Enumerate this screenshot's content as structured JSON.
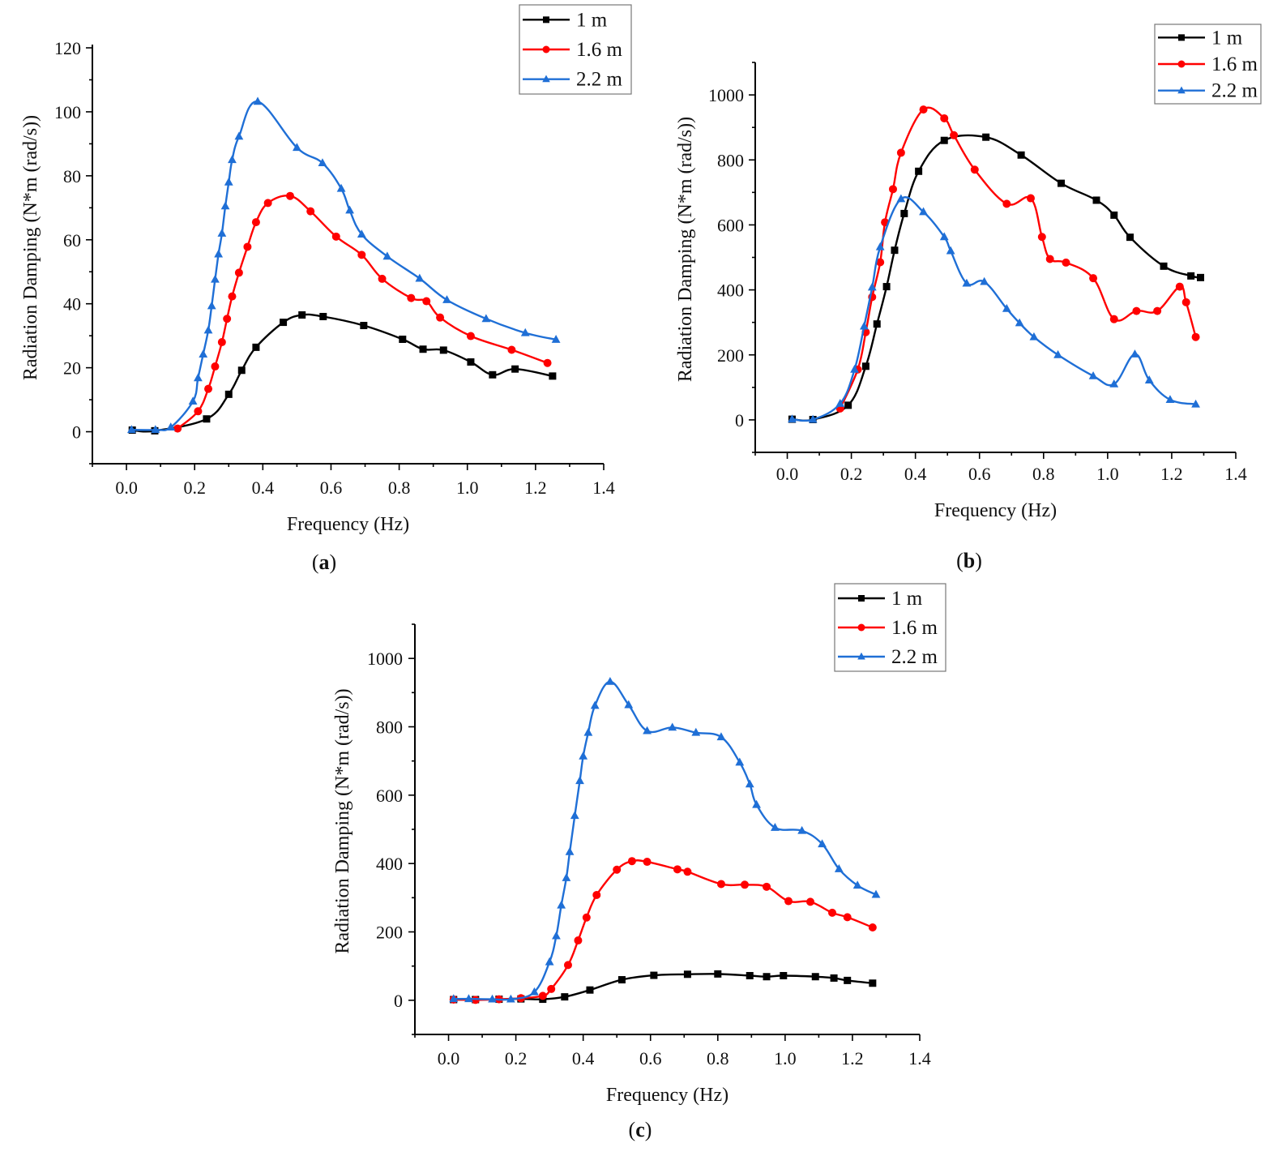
{
  "chart_data": [
    {
      "id": "a",
      "type": "line",
      "panel_label": "a",
      "title": "",
      "xlabel": "Frequency (Hz)",
      "ylabel": "Radiation Damping (N*m (rad/s))",
      "xlim": [
        -0.1,
        1.4
      ],
      "ylim": [
        -10,
        120
      ],
      "xticks": [
        0.0,
        0.2,
        0.4,
        0.6,
        0.8,
        1.0,
        1.2,
        1.4
      ],
      "xtick_labels": [
        "0.0",
        "0.2",
        "0.4",
        "0.6",
        "0.8",
        "1.0",
        "1.2",
        "1.4"
      ],
      "yticks": [
        0,
        20,
        40,
        60,
        80,
        100,
        120
      ],
      "ytick_labels": [
        "0",
        "20",
        "40",
        "60",
        "80",
        "100",
        "120"
      ],
      "legend_position": "top-right",
      "series": [
        {
          "name": "1 m",
          "color": "#000000",
          "marker": "square",
          "x": [
            0.017,
            0.083,
            0.235,
            0.3,
            0.338,
            0.38,
            0.46,
            0.515,
            0.577,
            0.696,
            0.81,
            0.87,
            0.93,
            1.01,
            1.074,
            1.14,
            1.25
          ],
          "y": [
            0.5,
            0.3,
            4.0,
            11.7,
            19.2,
            26.4,
            34.2,
            36.5,
            36.0,
            33.2,
            28.9,
            25.8,
            25.5,
            21.8,
            17.8,
            19.6,
            17.4
          ]
        },
        {
          "name": "1.6 m",
          "color": "#ff0000",
          "marker": "circle",
          "x": [
            0.15,
            0.21,
            0.24,
            0.26,
            0.28,
            0.295,
            0.31,
            0.33,
            0.355,
            0.38,
            0.415,
            0.48,
            0.54,
            0.615,
            0.69,
            0.75,
            0.835,
            0.88,
            0.92,
            1.01,
            1.13,
            1.235
          ],
          "y": [
            1.0,
            6.4,
            13.4,
            20.4,
            28.0,
            35.3,
            42.3,
            49.7,
            57.8,
            65.5,
            71.5,
            73.7,
            68.9,
            61.0,
            55.3,
            47.8,
            41.8,
            40.8,
            35.7,
            29.9,
            25.6,
            21.5
          ]
        },
        {
          "name": "2.2 m",
          "color": "#1f6fd6",
          "marker": "triangle",
          "x": [
            0.015,
            0.085,
            0.13,
            0.195,
            0.21,
            0.225,
            0.24,
            0.25,
            0.26,
            0.27,
            0.28,
            0.29,
            0.3,
            0.31,
            0.33,
            0.385,
            0.5,
            0.575,
            0.63,
            0.655,
            0.69,
            0.765,
            0.86,
            0.94,
            1.055,
            1.17,
            1.26
          ],
          "y": [
            0.6,
            0.6,
            1.4,
            9.5,
            16.8,
            24.2,
            31.7,
            39.3,
            47.6,
            55.5,
            62.0,
            70.5,
            78.0,
            85.0,
            92.3,
            103.2,
            88.8,
            84.0,
            76.0,
            69.2,
            61.7,
            54.8,
            47.9,
            41.2,
            35.3,
            30.9,
            28.8
          ]
        }
      ]
    },
    {
      "id": "b",
      "type": "line",
      "panel_label": "b",
      "title": "",
      "xlabel": "Frequency (Hz)",
      "ylabel": "Radiation Damping (N*m (rad/s))",
      "xlim": [
        -0.1,
        1.4
      ],
      "ylim": [
        -100,
        1100
      ],
      "xticks": [
        0.0,
        0.2,
        0.4,
        0.6,
        0.8,
        1.0,
        1.2,
        1.4
      ],
      "xtick_labels": [
        "0.0",
        "0.2",
        "0.4",
        "0.6",
        "0.8",
        "1.0",
        "1.2",
        "1.4"
      ],
      "yticks": [
        0,
        200,
        400,
        600,
        800,
        1000
      ],
      "ytick_labels": [
        "0",
        "200",
        "400",
        "600",
        "800",
        "1000"
      ],
      "legend_position": "top-right",
      "series": [
        {
          "name": "1 m",
          "color": "#000000",
          "marker": "square",
          "x": [
            0.015,
            0.08,
            0.19,
            0.245,
            0.28,
            0.31,
            0.335,
            0.365,
            0.41,
            0.49,
            0.62,
            0.73,
            0.855,
            0.965,
            1.02,
            1.07,
            1.175,
            1.26,
            1.29
          ],
          "y": [
            2,
            1,
            45,
            165,
            295,
            410,
            522,
            635,
            765,
            860,
            870,
            815,
            728,
            676,
            630,
            562,
            473,
            443,
            438
          ]
        },
        {
          "name": "1.6 m",
          "color": "#ff0000",
          "marker": "circle",
          "x": [
            0.165,
            0.22,
            0.245,
            0.265,
            0.29,
            0.305,
            0.33,
            0.355,
            0.425,
            0.49,
            0.52,
            0.585,
            0.685,
            0.76,
            0.795,
            0.82,
            0.87,
            0.955,
            1.02,
            1.09,
            1.155,
            1.225,
            1.245,
            1.275
          ],
          "y": [
            35,
            155,
            270,
            378,
            485,
            608,
            710,
            822,
            955,
            928,
            876,
            770,
            665,
            682,
            563,
            495,
            484,
            436,
            310,
            335,
            335,
            410,
            362,
            255
          ]
        },
        {
          "name": "2.2 m",
          "color": "#1f6fd6",
          "marker": "triangle",
          "x": [
            0.015,
            0.08,
            0.165,
            0.21,
            0.24,
            0.265,
            0.29,
            0.355,
            0.425,
            0.49,
            0.51,
            0.56,
            0.615,
            0.685,
            0.725,
            0.77,
            0.845,
            0.955,
            1.02,
            1.085,
            1.13,
            1.195,
            1.275
          ],
          "y": [
            2,
            1,
            50,
            155,
            288,
            408,
            532,
            680,
            640,
            563,
            520,
            420,
            425,
            342,
            298,
            255,
            200,
            135,
            110,
            202,
            122,
            62,
            48
          ]
        }
      ]
    },
    {
      "id": "c",
      "type": "line",
      "panel_label": "c",
      "title": "",
      "xlabel": "Frequency (Hz)",
      "ylabel": "Radiation Damping (N*m (rad/s))",
      "xlim": [
        -0.1,
        1.4
      ],
      "ylim": [
        -100,
        1100
      ],
      "xticks": [
        0.0,
        0.2,
        0.4,
        0.6,
        0.8,
        1.0,
        1.2,
        1.4
      ],
      "xtick_labels": [
        "0.0",
        "0.2",
        "0.4",
        "0.6",
        "0.8",
        "1.0",
        "1.2",
        "1.4"
      ],
      "yticks": [
        0,
        200,
        400,
        600,
        800,
        1000
      ],
      "ytick_labels": [
        "0",
        "200",
        "400",
        "600",
        "800",
        "1000"
      ],
      "legend_position": "top-right",
      "series": [
        {
          "name": "1 m",
          "color": "#000000",
          "marker": "square",
          "x": [
            0.015,
            0.08,
            0.15,
            0.215,
            0.28,
            0.345,
            0.42,
            0.515,
            0.61,
            0.71,
            0.8,
            0.895,
            0.945,
            0.995,
            1.09,
            1.145,
            1.185,
            1.26
          ],
          "y": [
            2,
            2,
            3,
            4,
            3,
            10,
            30,
            60,
            73,
            76,
            77,
            72,
            69,
            72,
            69,
            65,
            58,
            50
          ]
        },
        {
          "name": "1.6 m",
          "color": "#ff0000",
          "marker": "circle",
          "x": [
            0.015,
            0.08,
            0.15,
            0.215,
            0.28,
            0.305,
            0.355,
            0.385,
            0.41,
            0.44,
            0.5,
            0.545,
            0.59,
            0.68,
            0.71,
            0.81,
            0.88,
            0.945,
            1.01,
            1.075,
            1.14,
            1.185,
            1.26
          ],
          "y": [
            2,
            1,
            3,
            6,
            13,
            33,
            103,
            175,
            242,
            308,
            382,
            407,
            405,
            383,
            376,
            340,
            338,
            332,
            290,
            288,
            256,
            243,
            213
          ]
        },
        {
          "name": "2.2 m",
          "color": "#1f6fd6",
          "marker": "triangle",
          "x": [
            0.015,
            0.06,
            0.13,
            0.185,
            0.255,
            0.3,
            0.32,
            0.335,
            0.35,
            0.36,
            0.375,
            0.39,
            0.4,
            0.415,
            0.435,
            0.48,
            0.535,
            0.59,
            0.665,
            0.735,
            0.81,
            0.865,
            0.895,
            0.915,
            0.97,
            1.05,
            1.11,
            1.16,
            1.215,
            1.27
          ],
          "y": [
            4,
            4,
            3,
            3,
            24,
            112,
            188,
            278,
            358,
            434,
            540,
            642,
            714,
            783,
            862,
            932,
            864,
            788,
            798,
            783,
            770,
            696,
            632,
            572,
            505,
            496,
            457,
            384,
            336,
            309
          ]
        }
      ]
    }
  ]
}
